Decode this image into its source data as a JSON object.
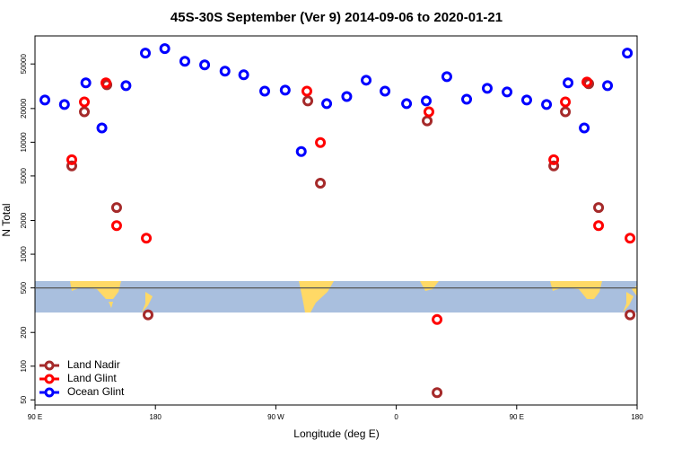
{
  "chart_data": {
    "type": "scatter",
    "title": "45S-30S September (Ver 9)   2014-09-06 to 2020-01-21",
    "x_label": "Longitude (deg E)",
    "y_label": "N Total",
    "y_scale": "log",
    "xlim": [
      90,
      540
    ],
    "xticks": [
      {
        "value": 90,
        "label": "90 E"
      },
      {
        "value": 180,
        "label": "180"
      },
      {
        "value": 270,
        "label": "90 W"
      },
      {
        "value": 360,
        "label": "0"
      },
      {
        "value": 450,
        "label": "90 E"
      },
      {
        "value": 540,
        "label": "180"
      }
    ],
    "ylim": [
      45,
      89000
    ],
    "yticks": [
      50,
      100,
      200,
      500,
      1000,
      2000,
      5000,
      10000,
      20000,
      50000
    ],
    "reference_line": 500,
    "legend_position": "bottom-left",
    "series": [
      {
        "name": "Land Nadir",
        "color": "#a52a2a",
        "x": [
          117.5,
          126.9,
          143.7,
          151,
          174.5,
          293.9,
          303.3,
          383.1,
          390.5,
          477.7,
          486.4,
          503.8,
          511.2,
          534.7
        ],
        "values": [
          6140,
          18700,
          32600,
          2610,
          287,
          23400,
          4310,
          15500,
          58,
          6140,
          18700,
          33300,
          2610,
          287
        ]
      },
      {
        "name": "Land Glint",
        "color": "#ff0000",
        "x": [
          117.5,
          126.9,
          143,
          151,
          173.2,
          293.2,
          303.3,
          384.4,
          390.5,
          477.7,
          486.4,
          502.5,
          511.2,
          534.7
        ],
        "values": [
          6980,
          22900,
          33900,
          1800,
          1390,
          28600,
          9930,
          18700,
          261,
          6980,
          22900,
          34500,
          1800,
          1390
        ]
      },
      {
        "name": "Ocean Glint",
        "color": "#0000ff",
        "x": [
          97.4,
          112,
          128,
          140,
          158,
          172.5,
          187,
          202,
          216.8,
          232,
          246,
          261.7,
          277,
          289,
          308,
          323,
          337.5,
          351.6,
          367.7,
          382.4,
          397.8,
          412.6,
          428,
          442.8,
          457.5,
          472.3,
          488.4,
          500.5,
          517.9,
          532.7
        ],
        "values": [
          23800,
          21700,
          33900,
          13400,
          32000,
          62500,
          68600,
          52800,
          49100,
          43100,
          40000,
          28600,
          29200,
          8260,
          22100,
          25600,
          35800,
          28600,
          22100,
          23400,
          38500,
          24200,
          30300,
          28100,
          23800,
          21700,
          33900,
          13400,
          32000,
          62500
        ]
      }
    ]
  }
}
